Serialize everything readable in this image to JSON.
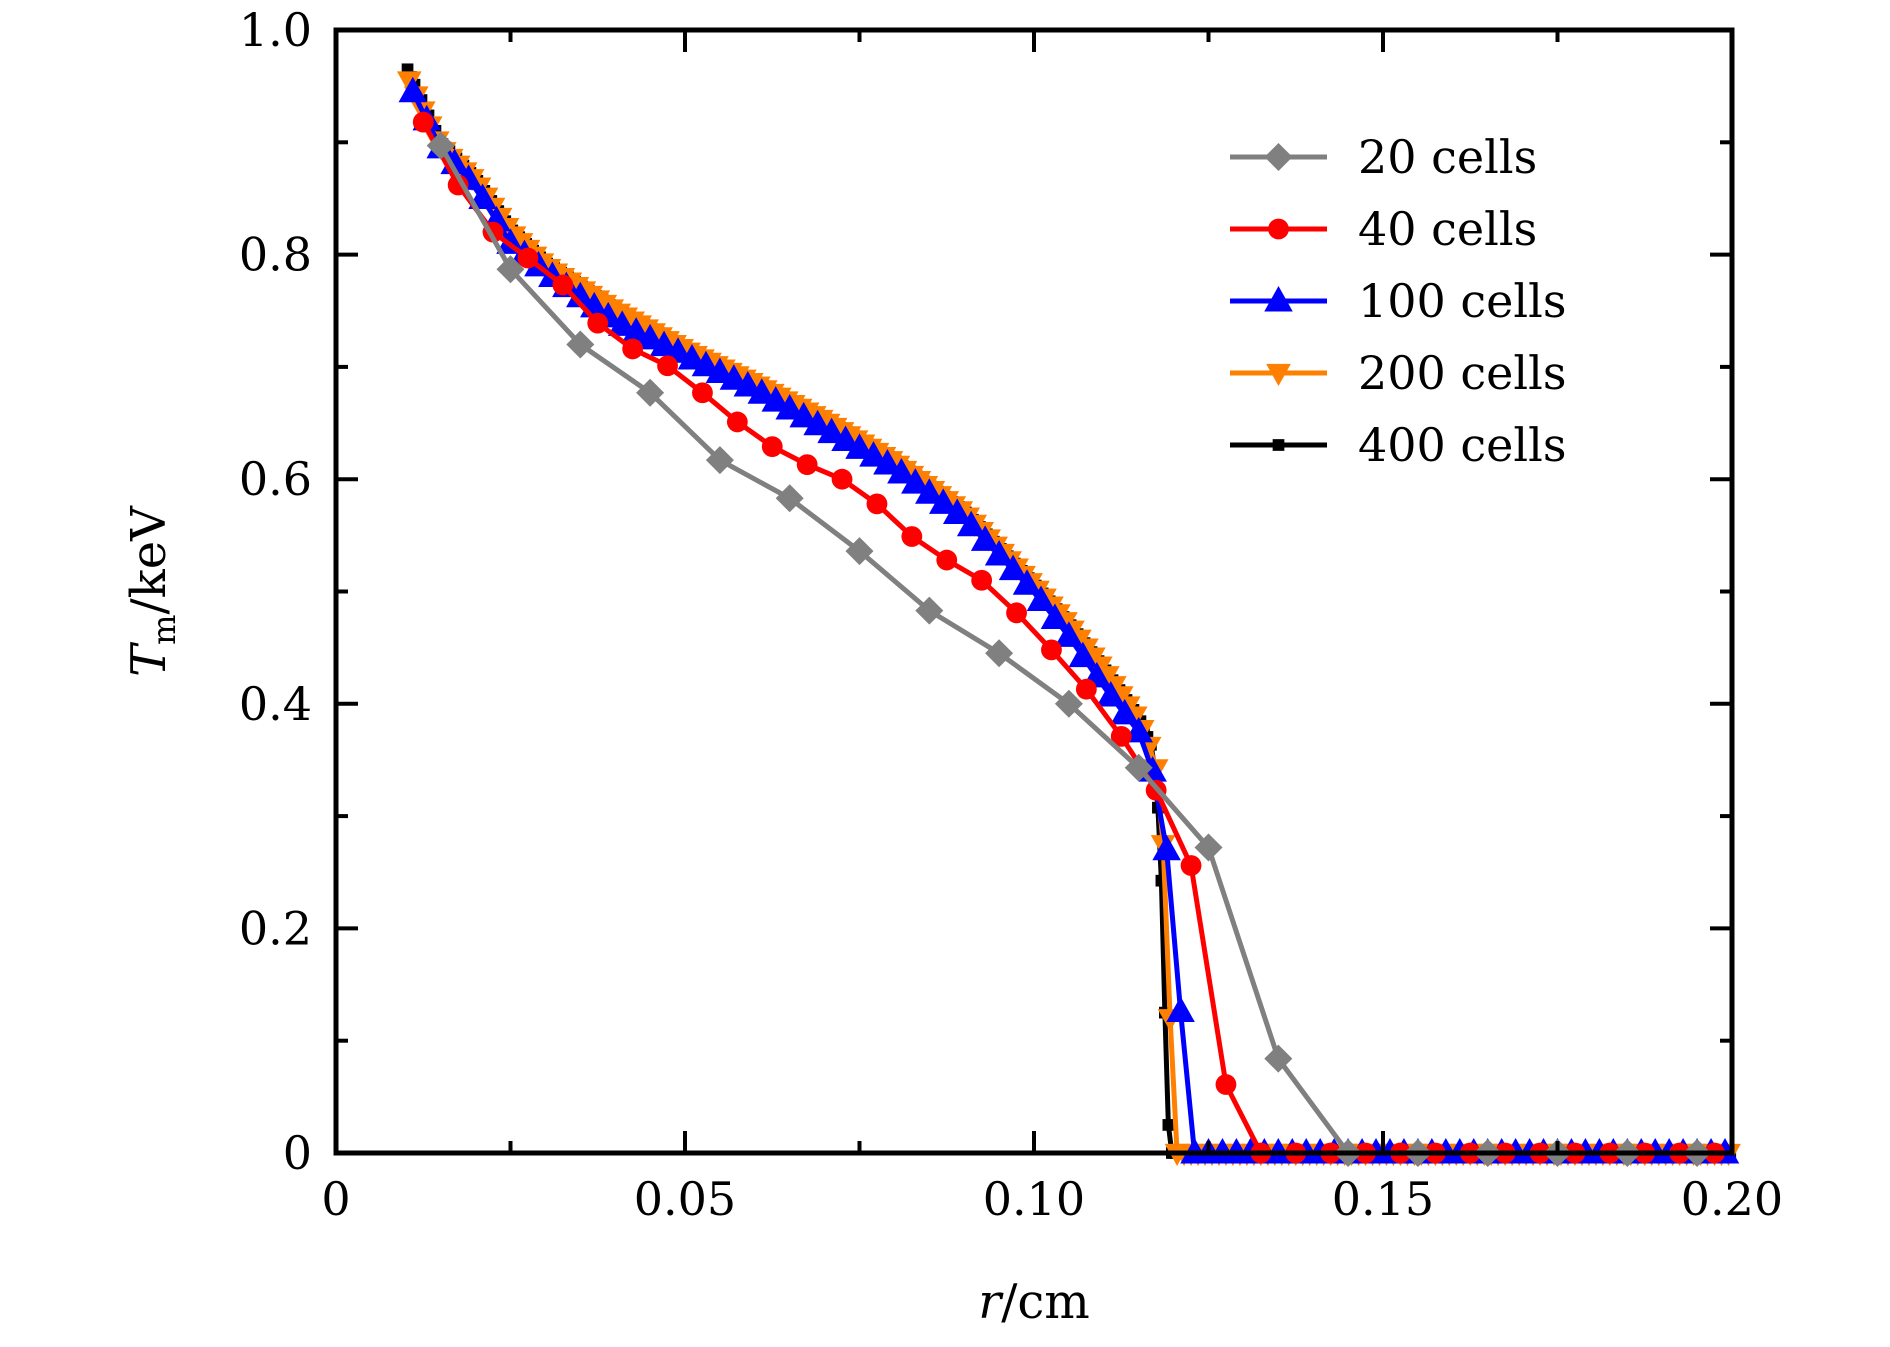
{
  "chart_data": {
    "type": "line",
    "title": "",
    "xlabel": "r/cm",
    "xlabel_italic_part": "r",
    "xlabel_unit": "/cm",
    "ylabel": "T_m/keV",
    "ylabel_main": "T",
    "ylabel_sub": "m",
    "ylabel_unit": "/keV",
    "xlim": [
      0,
      0.2
    ],
    "ylim": [
      0,
      1.0
    ],
    "xticks": [
      0,
      0.05,
      0.1,
      0.15,
      0.2
    ],
    "xtick_labels": [
      "0",
      "0.05",
      "0.10",
      "0.15",
      "0.20"
    ],
    "yticks": [
      0,
      0.2,
      0.4,
      0.6,
      0.8,
      1.0
    ],
    "ytick_labels": [
      "0",
      "0.2",
      "0.4",
      "0.6",
      "0.8",
      "1.0"
    ],
    "x_minor_step": 0.025,
    "y_minor_step": 0.1,
    "grid": false,
    "legend_position": "top-right",
    "series": [
      {
        "name": "20 cells",
        "color": "#808080",
        "marker": "diamond",
        "x": [
          0.015,
          0.025,
          0.035,
          0.045,
          0.055,
          0.065,
          0.075,
          0.085,
          0.095,
          0.105,
          0.115,
          0.125,
          0.135,
          0.145,
          0.155,
          0.165,
          0.175,
          0.185,
          0.195
        ],
        "y": [
          0.897,
          0.787,
          0.72,
          0.677,
          0.617,
          0.583,
          0.536,
          0.483,
          0.445,
          0.4,
          0.343,
          0.272,
          0.084,
          0,
          0,
          0,
          0,
          0,
          0
        ]
      },
      {
        "name": "40 cells",
        "color": "#ff0000",
        "marker": "circle",
        "x": [
          0.0125,
          0.0175,
          0.0225,
          0.0275,
          0.0325,
          0.0375,
          0.0425,
          0.0475,
          0.0525,
          0.0575,
          0.0625,
          0.0675,
          0.0725,
          0.0775,
          0.0825,
          0.0875,
          0.0925,
          0.0975,
          0.1025,
          0.1075,
          0.1125,
          0.1175,
          0.1225,
          0.1275,
          0.1325,
          0.1375,
          0.1425,
          0.1475,
          0.1525,
          0.1575,
          0.1625,
          0.1675,
          0.1725,
          0.1775,
          0.1825,
          0.1875,
          0.1925,
          0.1975
        ],
        "y": [
          0.918,
          0.862,
          0.82,
          0.797,
          0.773,
          0.739,
          0.716,
          0.701,
          0.677,
          0.651,
          0.629,
          0.613,
          0.6,
          0.578,
          0.549,
          0.528,
          0.51,
          0.481,
          0.448,
          0.413,
          0.371,
          0.323,
          0.256,
          0.061,
          0,
          0,
          0,
          0,
          0,
          0,
          0,
          0,
          0,
          0,
          0,
          0,
          0,
          0
        ]
      },
      {
        "name": "100 cells",
        "color": "#0000ff",
        "marker": "triangle-up",
        "x_start": 0.011,
        "x_step": 0.002,
        "count": 95,
        "profile": [
          [
            0.011,
            0.945
          ],
          [
            0.015,
            0.895
          ],
          [
            0.02,
            0.86
          ],
          [
            0.025,
            0.81
          ],
          [
            0.03,
            0.785
          ],
          [
            0.04,
            0.74
          ],
          [
            0.05,
            0.71
          ],
          [
            0.06,
            0.68
          ],
          [
            0.07,
            0.645
          ],
          [
            0.08,
            0.61
          ],
          [
            0.09,
            0.565
          ],
          [
            0.1,
            0.5
          ],
          [
            0.105,
            0.46
          ],
          [
            0.11,
            0.415
          ],
          [
            0.115,
            0.375
          ],
          [
            0.117,
            0.34
          ],
          [
            0.119,
            0.27
          ],
          [
            0.121,
            0.126
          ],
          [
            0.123,
            0
          ],
          [
            0.199,
            0
          ]
        ]
      },
      {
        "name": "200 cells",
        "color": "#ff8000",
        "marker": "triangle-down",
        "x_start": 0.0105,
        "x_step": 0.001,
        "count": 190,
        "profile": [
          [
            0.0105,
            0.955
          ],
          [
            0.015,
            0.895
          ],
          [
            0.02,
            0.865
          ],
          [
            0.025,
            0.82
          ],
          [
            0.03,
            0.79
          ],
          [
            0.04,
            0.75
          ],
          [
            0.05,
            0.715
          ],
          [
            0.06,
            0.685
          ],
          [
            0.07,
            0.652
          ],
          [
            0.08,
            0.615
          ],
          [
            0.09,
            0.57
          ],
          [
            0.1,
            0.505
          ],
          [
            0.105,
            0.47
          ],
          [
            0.11,
            0.43
          ],
          [
            0.115,
            0.385
          ],
          [
            0.117,
            0.355
          ],
          [
            0.118,
            0.33
          ],
          [
            0.119,
            0.22
          ],
          [
            0.1195,
            0.12
          ],
          [
            0.1205,
            0
          ],
          [
            0.1995,
            0
          ]
        ]
      },
      {
        "name": "400 cells",
        "color": "#000000",
        "marker": "square",
        "x_start": 0.01025,
        "x_step": 0.0005,
        "count": 380,
        "profile": [
          [
            0.01025,
            0.965
          ],
          [
            0.015,
            0.9
          ],
          [
            0.02,
            0.868
          ],
          [
            0.025,
            0.823
          ],
          [
            0.03,
            0.793
          ],
          [
            0.04,
            0.752
          ],
          [
            0.05,
            0.717
          ],
          [
            0.06,
            0.687
          ],
          [
            0.07,
            0.654
          ],
          [
            0.08,
            0.617
          ],
          [
            0.09,
            0.572
          ],
          [
            0.1,
            0.507
          ],
          [
            0.105,
            0.472
          ],
          [
            0.11,
            0.432
          ],
          [
            0.115,
            0.388
          ],
          [
            0.117,
            0.36
          ],
          [
            0.1175,
            0.33
          ],
          [
            0.118,
            0.285
          ],
          [
            0.1185,
            0.2
          ],
          [
            0.119,
            0.05
          ],
          [
            0.1195,
            0
          ],
          [
            0.19975,
            0
          ]
        ]
      }
    ]
  }
}
